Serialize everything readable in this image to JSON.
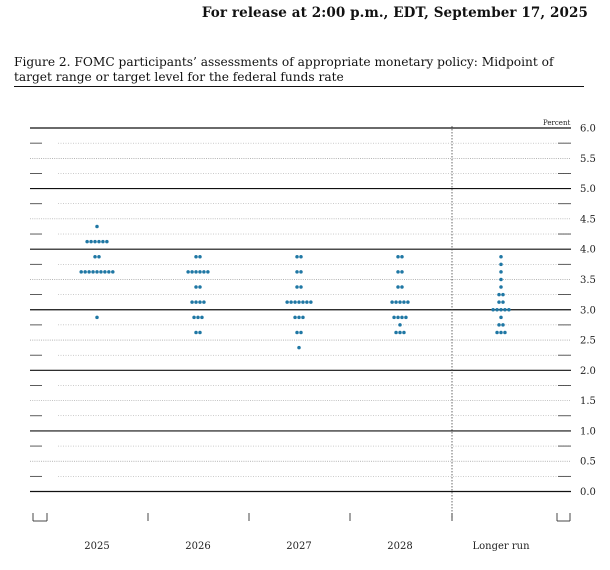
{
  "header": {
    "release": "For release at 2:00 p.m., EDT, September 17, 2025",
    "figure_title": "Figure 2. FOMC participants’ assessments of appropriate monetary policy: Midpoint of target range or target level for the federal funds rate"
  },
  "chart_data": {
    "type": "scatter",
    "subtype": "dot-plot",
    "unit_label": "Percent",
    "ylim": [
      -0.25,
      6.0
    ],
    "y_ticks": [
      "6.0",
      "5.5",
      "5.0",
      "4.5",
      "4.0",
      "3.5",
      "3.0",
      "2.5",
      "2.0",
      "1.5",
      "1.0",
      "0.5",
      "0.0"
    ],
    "categories": [
      "2025",
      "2026",
      "2027",
      "2028",
      "Longer run"
    ],
    "points": [
      {
        "year": "2025",
        "dots": [
          {
            "y": 4.375,
            "n": 1
          },
          {
            "y": 4.125,
            "n": 6
          },
          {
            "y": 3.875,
            "n": 2
          },
          {
            "y": 3.625,
            "n": 9
          },
          {
            "y": 2.875,
            "n": 1
          }
        ]
      },
      {
        "year": "2026",
        "dots": [
          {
            "y": 3.875,
            "n": 2
          },
          {
            "y": 3.625,
            "n": 6
          },
          {
            "y": 3.375,
            "n": 2
          },
          {
            "y": 3.125,
            "n": 4
          },
          {
            "y": 2.875,
            "n": 3
          },
          {
            "y": 2.625,
            "n": 2
          }
        ]
      },
      {
        "year": "2027",
        "dots": [
          {
            "y": 3.875,
            "n": 2
          },
          {
            "y": 3.625,
            "n": 2
          },
          {
            "y": 3.375,
            "n": 2
          },
          {
            "y": 3.125,
            "n": 7
          },
          {
            "y": 2.875,
            "n": 3
          },
          {
            "y": 2.625,
            "n": 2
          },
          {
            "y": 2.375,
            "n": 1
          }
        ]
      },
      {
        "year": "2028",
        "dots": [
          {
            "y": 3.875,
            "n": 2
          },
          {
            "y": 3.625,
            "n": 2
          },
          {
            "y": 3.375,
            "n": 2
          },
          {
            "y": 3.125,
            "n": 5
          },
          {
            "y": 2.875,
            "n": 4
          },
          {
            "y": 2.75,
            "n": 1
          },
          {
            "y": 2.625,
            "n": 3
          }
        ]
      },
      {
        "year": "Longer run",
        "dots": [
          {
            "y": 3.875,
            "n": 1
          },
          {
            "y": 3.75,
            "n": 1
          },
          {
            "y": 3.625,
            "n": 1
          },
          {
            "y": 3.5,
            "n": 1
          },
          {
            "y": 3.375,
            "n": 1
          },
          {
            "y": 3.25,
            "n": 2
          },
          {
            "y": 3.125,
            "n": 2
          },
          {
            "y": 3.0,
            "n": 5
          },
          {
            "y": 2.875,
            "n": 1
          },
          {
            "y": 2.75,
            "n": 2
          },
          {
            "y": 2.625,
            "n": 3
          }
        ]
      }
    ],
    "dot_color": "#1f77a4",
    "grid": true,
    "longer_run_separator": "dotted-vertical"
  }
}
